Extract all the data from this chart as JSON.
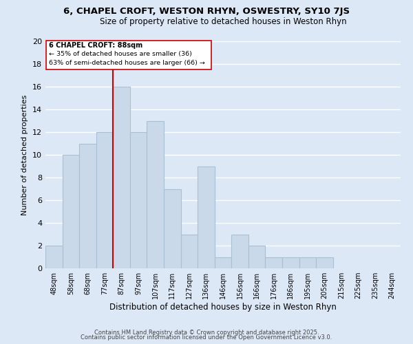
{
  "title": "6, CHAPEL CROFT, WESTON RHYN, OSWESTRY, SY10 7JS",
  "subtitle": "Size of property relative to detached houses in Weston Rhyn",
  "xlabel": "Distribution of detached houses by size in Weston Rhyn",
  "ylabel": "Number of detached properties",
  "bar_labels": [
    "48sqm",
    "58sqm",
    "68sqm",
    "77sqm",
    "87sqm",
    "97sqm",
    "107sqm",
    "117sqm",
    "127sqm",
    "136sqm",
    "146sqm",
    "156sqm",
    "166sqm",
    "176sqm",
    "186sqm",
    "195sqm",
    "205sqm",
    "215sqm",
    "225sqm",
    "235sqm",
    "244sqm"
  ],
  "bar_values": [
    2,
    10,
    11,
    12,
    16,
    12,
    13,
    7,
    3,
    9,
    1,
    3,
    2,
    1,
    1,
    1,
    1,
    0,
    0,
    0,
    0
  ],
  "bar_color": "#c9d9ea",
  "bar_edge_color": "#a8bfd4",
  "vline_color": "#cc0000",
  "annotation_title": "6 CHAPEL CROFT: 88sqm",
  "annotation_line1": "← 35% of detached houses are smaller (36)",
  "annotation_line2": "63% of semi-detached houses are larger (66) →",
  "ylim": [
    0,
    20
  ],
  "yticks": [
    0,
    2,
    4,
    6,
    8,
    10,
    12,
    14,
    16,
    18,
    20
  ],
  "footer1": "Contains HM Land Registry data © Crown copyright and database right 2025.",
  "footer2": "Contains public sector information licensed under the Open Government Licence v3.0.",
  "background_color": "#dce8f5",
  "grid_color": "#ffffff"
}
